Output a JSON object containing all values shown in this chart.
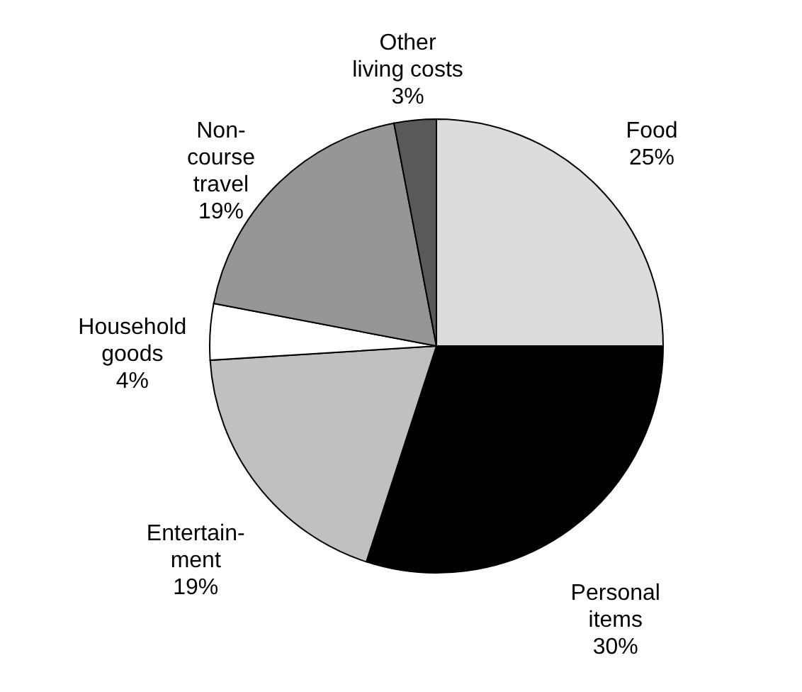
{
  "chart_data": {
    "type": "pie",
    "categories": [
      "Food",
      "Personal\nitems",
      "Entertain-\nment",
      "Household\ngoods",
      "Non-\ncourse\ntravel",
      "Other\nliving costs"
    ],
    "values": [
      25,
      30,
      19,
      4,
      19,
      3
    ],
    "value_labels": [
      "25%",
      "30%",
      "19%",
      "4%",
      "19%",
      "3%"
    ],
    "colors": [
      "#dcdcdc",
      "#000000",
      "#c0c0c0",
      "#ffffff",
      "#969696",
      "#595959"
    ]
  }
}
